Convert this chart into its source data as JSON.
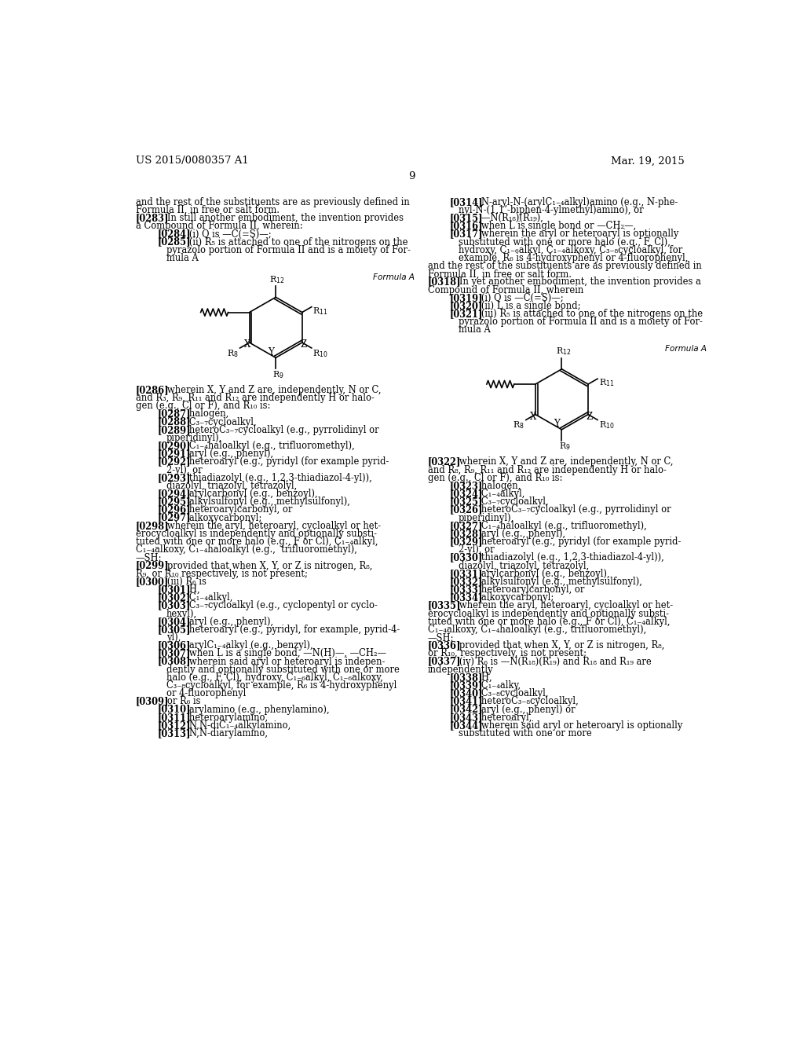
{
  "background_color": "#ffffff",
  "page_number": "9",
  "header_left": "US 2015/0080357 A1",
  "header_right": "Mar. 19, 2015",
  "left_col_lines": [
    {
      "indent": 0,
      "bold_tag": "",
      "text": "and the rest of the substituents are as previously defined in"
    },
    {
      "indent": 0,
      "bold_tag": "",
      "text": "Formula II, in free or salt form."
    },
    {
      "indent": 0,
      "bold_tag": "[0283]",
      "text": "   In still another embodiment, the invention provides"
    },
    {
      "indent": 0,
      "bold_tag": "",
      "text": "a Compound of Formula II, wherein:"
    },
    {
      "indent": 1,
      "bold_tag": "[0284]",
      "text": "   (i) Q is —C(=S)—;"
    },
    {
      "indent": 1,
      "bold_tag": "[0285]",
      "text": "   (ii) R₅ is attached to one of the nitrogens on the"
    },
    {
      "indent": 2,
      "bold_tag": "",
      "text": "pyrazolo portion of Formula II and is a moiety of For-"
    },
    {
      "indent": 2,
      "bold_tag": "",
      "text": "mula A"
    }
  ],
  "left_body_lines": [
    {
      "indent": 0,
      "bold_tag": "[0286]",
      "text": "   wherein X, Y and Z are, independently, N or C,"
    },
    {
      "indent": 0,
      "bold_tag": "",
      "text": "and R₃, R₉, R₁₁ and R₁₂ are independently H or halo-"
    },
    {
      "indent": 0,
      "bold_tag": "",
      "text": "gen (e.g., Cl or F), and R₁₀ is:"
    },
    {
      "indent": 1,
      "bold_tag": "[0287]",
      "text": "   halogen,"
    },
    {
      "indent": 1,
      "bold_tag": "[0288]",
      "text": "   C₃₋₇cycloalkyl,"
    },
    {
      "indent": 1,
      "bold_tag": "[0289]",
      "text": "   heteroC₃₋₇cycloalkyl (e.g., pyrrolidinyl or"
    },
    {
      "indent": 2,
      "bold_tag": "",
      "text": "piperidinyl),"
    },
    {
      "indent": 1,
      "bold_tag": "[0290]",
      "text": "   C₁₋₄haloalkyl (e.g., trifluoromethyl),"
    },
    {
      "indent": 1,
      "bold_tag": "[0291]",
      "text": "   aryl (e.g., phenyl),"
    },
    {
      "indent": 1,
      "bold_tag": "[0292]",
      "text": "   heteroaryl (e.g., pyridyl (for example pyrid-"
    },
    {
      "indent": 2,
      "bold_tag": "",
      "text": "2-yl), or"
    },
    {
      "indent": 1,
      "bold_tag": "[0293]",
      "text": "   thiadiazolyl (e.g., 1,2,3-thiadiazol-4-yl)),"
    },
    {
      "indent": 2,
      "bold_tag": "",
      "text": "diazolyl, triazolyl, tetrazolyl,"
    },
    {
      "indent": 1,
      "bold_tag": "[0294]",
      "text": "   arylcarbonyl (e.g., benzoyl),"
    },
    {
      "indent": 1,
      "bold_tag": "[0295]",
      "text": "   alkylsulfonyl (e.g., methylsulfonyl),"
    },
    {
      "indent": 1,
      "bold_tag": "[0296]",
      "text": "   heteroarylcarbonyl, or"
    },
    {
      "indent": 1,
      "bold_tag": "[0297]",
      "text": "   alkoxycarbonyl;"
    },
    {
      "indent": 0,
      "bold_tag": "[0298]",
      "text": "   wherein the aryl, heteroaryl, cycloalkyl or het-"
    },
    {
      "indent": 0,
      "bold_tag": "",
      "text": "erocycloalkyl is independently and optionally substi-"
    },
    {
      "indent": 0,
      "bold_tag": "",
      "text": "tuted with one or more halo (e.g., F or Cl), C₁₋₄alkyl,"
    },
    {
      "indent": 0,
      "bold_tag": "",
      "text": "C₁₋₄alkoxy, C₁₋₄haloalkyl (e.g.,  trifluoromethyl),"
    },
    {
      "indent": 0,
      "bold_tag": "",
      "text": "—SH;"
    },
    {
      "indent": 0,
      "bold_tag": "[0299]",
      "text": "   provided that when X, Y, or Z is nitrogen, R₈,"
    },
    {
      "indent": 0,
      "bold_tag": "",
      "text": "R₉, or R₁₀ respectively, is not present;"
    },
    {
      "indent": 0,
      "bold_tag": "[0300]",
      "text": "   (iii) R₆ is"
    },
    {
      "indent": 1,
      "bold_tag": "[0301]",
      "text": "   H,"
    },
    {
      "indent": 1,
      "bold_tag": "[0302]",
      "text": "   C₁₋₄alkyl,"
    },
    {
      "indent": 1,
      "bold_tag": "[0303]",
      "text": "   C₃₋₇cycloalkyl (e.g., cyclopentyl or cyclo-"
    },
    {
      "indent": 2,
      "bold_tag": "",
      "text": "hexyl),"
    },
    {
      "indent": 1,
      "bold_tag": "[0304]",
      "text": "   aryl (e.g., phenyl),"
    },
    {
      "indent": 1,
      "bold_tag": "[0305]",
      "text": "   heteroaryl (e.g., pyridyl, for example, pyrid-4-"
    },
    {
      "indent": 2,
      "bold_tag": "",
      "text": "yl),"
    },
    {
      "indent": 1,
      "bold_tag": "[0306]",
      "text": "   arylC₁₋₄alkyl (e.g., benzyl),"
    },
    {
      "indent": 1,
      "bold_tag": "[0307]",
      "text": "   when L is a single bond, —N(H)—, —CH₂—"
    },
    {
      "indent": 1,
      "bold_tag": "[0308]",
      "text": "   wherein said aryl or heteroaryl is indepen-"
    },
    {
      "indent": 2,
      "bold_tag": "",
      "text": "dently and optionally substituted with one or more"
    },
    {
      "indent": 2,
      "bold_tag": "",
      "text": "halo (e.g., F, Cl), hydroxy, C₁₋₆alkyl, C₁₋₆alkoxy,"
    },
    {
      "indent": 2,
      "bold_tag": "",
      "text": "C₃₋₈cycloalkyl, for example, R₆ is 4-hydroxyphenyl"
    },
    {
      "indent": 2,
      "bold_tag": "",
      "text": "or 4-fluorophenyl"
    },
    {
      "indent": 0,
      "bold_tag": "[0309]",
      "text": "   or R₆ is"
    },
    {
      "indent": 1,
      "bold_tag": "[0310]",
      "text": "   arylamino (e.g., phenylamino),"
    },
    {
      "indent": 1,
      "bold_tag": "[0311]",
      "text": "   heteroarylamino,"
    },
    {
      "indent": 1,
      "bold_tag": "[0312]",
      "text": "   N,N-diC₁₋₄alkylamino,"
    },
    {
      "indent": 1,
      "bold_tag": "[0313]",
      "text": "   N,N-diarylamino,"
    }
  ],
  "right_col_lines": [
    {
      "indent": 1,
      "bold_tag": "[0314]",
      "text": "   N-aryl-N-(arylC₁₋₄alkyl)amino (e.g., N-phe-"
    },
    {
      "indent": 2,
      "bold_tag": "",
      "text": "nyl-N-(1,1’-biphen-4-ylmethyl)amino), or"
    },
    {
      "indent": 1,
      "bold_tag": "[0315]",
      "text": "   —N(R₁₈)(R₁₉),"
    },
    {
      "indent": 1,
      "bold_tag": "[0316]",
      "text": "   when L is single bond or —CH₂—,"
    },
    {
      "indent": 1,
      "bold_tag": "[0317]",
      "text": "   wherein the aryl or heteroaryl is optionally"
    },
    {
      "indent": 2,
      "bold_tag": "",
      "text": "substituted with one or more halo (e.g., F, Cl),"
    },
    {
      "indent": 2,
      "bold_tag": "",
      "text": "hydroxy, C₁₋₆alkyl, C₁₋₄alkoxy, C₃₋₈cycloalkyl, for"
    },
    {
      "indent": 2,
      "bold_tag": "",
      "text": "example, R₆ is 4-hydroxyphenyl or 4-fluorophenyl,"
    },
    {
      "indent": 0,
      "bold_tag": "",
      "text": "and the rest of the substituents are as previously defined in"
    },
    {
      "indent": 0,
      "bold_tag": "",
      "text": "Formula II, in free or salt form."
    },
    {
      "indent": 0,
      "bold_tag": "[0318]",
      "text": "   In yet another embodiment, the invention provides a"
    },
    {
      "indent": 0,
      "bold_tag": "",
      "text": "Compound of Formula II, wherein"
    },
    {
      "indent": 1,
      "bold_tag": "[0319]",
      "text": "   (i) Q is —C(=S)—;"
    },
    {
      "indent": 1,
      "bold_tag": "[0320]",
      "text": "   (ii) L is a single bond;"
    },
    {
      "indent": 1,
      "bold_tag": "[0321]",
      "text": "   (iii) R₅ is attached to one of the nitrogens on the"
    },
    {
      "indent": 2,
      "bold_tag": "",
      "text": "pyrazolo portion of Formula II and is a moiety of For-"
    },
    {
      "indent": 2,
      "bold_tag": "",
      "text": "mula A"
    }
  ],
  "right_body_lines": [
    {
      "indent": 0,
      "bold_tag": "[0322]",
      "text": "   wherein X, Y and Z are, independently, N or C,"
    },
    {
      "indent": 0,
      "bold_tag": "",
      "text": "and R₈, R₉, R₁₁ and R₁₂ are independently H or halo-"
    },
    {
      "indent": 0,
      "bold_tag": "",
      "text": "gen (e.g., Cl or F), and R₁₀ is:"
    },
    {
      "indent": 1,
      "bold_tag": "[0323]",
      "text": "   halogen,"
    },
    {
      "indent": 1,
      "bold_tag": "[0324]",
      "text": "   C₁₋₄alkyl,"
    },
    {
      "indent": 1,
      "bold_tag": "[0325]",
      "text": "   C₃₋₇cycloalkyl,"
    },
    {
      "indent": 1,
      "bold_tag": "[0326]",
      "text": "   heteroC₃₋₇cycloalkyl (e.g., pyrrolidinyl or"
    },
    {
      "indent": 2,
      "bold_tag": "",
      "text": "piperidinyl),"
    },
    {
      "indent": 1,
      "bold_tag": "[0327]",
      "text": "   C₁₋₄haloalkyl (e.g., trifluoromethyl),"
    },
    {
      "indent": 1,
      "bold_tag": "[0328]",
      "text": "   aryl (e.g., phenyl),"
    },
    {
      "indent": 1,
      "bold_tag": "[0329]",
      "text": "   heteroaryl (e.g., pyridyl (for example pyrid-"
    },
    {
      "indent": 2,
      "bold_tag": "",
      "text": "2-yl), or"
    },
    {
      "indent": 1,
      "bold_tag": "[0330]",
      "text": "   thiadiazolyl (e.g., 1,2,3-thiadiazol-4-yl)),"
    },
    {
      "indent": 2,
      "bold_tag": "",
      "text": "diazolyl, triazolyl, tetrazolyl,"
    },
    {
      "indent": 1,
      "bold_tag": "[0331]",
      "text": "   arylcarbonyl (e.g., benzoyl),"
    },
    {
      "indent": 1,
      "bold_tag": "[0332]",
      "text": "   alkylsulfonyl (e.g., methylsulfonyl),"
    },
    {
      "indent": 1,
      "bold_tag": "[0333]",
      "text": "   heteroarylcarbonyl, or"
    },
    {
      "indent": 1,
      "bold_tag": "[0334]",
      "text": "   alkoxycarbonyl;"
    },
    {
      "indent": 0,
      "bold_tag": "[0335]",
      "text": "   wherein the aryl, heteroaryl, cycloalkyl or het-"
    },
    {
      "indent": 0,
      "bold_tag": "",
      "text": "erocycloalkyl is independently and optionally substi-"
    },
    {
      "indent": 0,
      "bold_tag": "",
      "text": "tuted with one or more halo (e.g., F or Cl), C₁₋₄alkyl,"
    },
    {
      "indent": 0,
      "bold_tag": "",
      "text": "C₁₋₄alkoxy, C₁₋₄haloalkyl (e.g., trifluoromethyl),"
    },
    {
      "indent": 0,
      "bold_tag": "",
      "text": "—SH;"
    },
    {
      "indent": 0,
      "bold_tag": "[0336]",
      "text": "   provided that when X, Y, or Z is nitrogen, R₈,"
    },
    {
      "indent": 0,
      "bold_tag": "",
      "text": "or R₁₀, respectively, is not present;"
    },
    {
      "indent": 0,
      "bold_tag": "[0337]",
      "text": "   (iv) R₆ is —N(R₁₈)(R₁₉) and R₁₈ and R₁₉ are"
    },
    {
      "indent": 0,
      "bold_tag": "",
      "text": "independently"
    },
    {
      "indent": 1,
      "bold_tag": "[0338]",
      "text": "   H,"
    },
    {
      "indent": 1,
      "bold_tag": "[0339]",
      "text": "   C₁₋₄alky,"
    },
    {
      "indent": 1,
      "bold_tag": "[0340]",
      "text": "   C₃₋₈cycloalkyl,"
    },
    {
      "indent": 1,
      "bold_tag": "[0341]",
      "text": "   heteroC₃₋₈cycloalkyl,"
    },
    {
      "indent": 1,
      "bold_tag": "[0342]",
      "text": "   aryl (e.g., phenyl) or"
    },
    {
      "indent": 1,
      "bold_tag": "[0343]",
      "text": "   heteroaryl,"
    },
    {
      "indent": 1,
      "bold_tag": "[0344]",
      "text": "   wherein said aryl or heteroaryl is optionally"
    },
    {
      "indent": 2,
      "bold_tag": "",
      "text": "substituted with one or more"
    }
  ]
}
